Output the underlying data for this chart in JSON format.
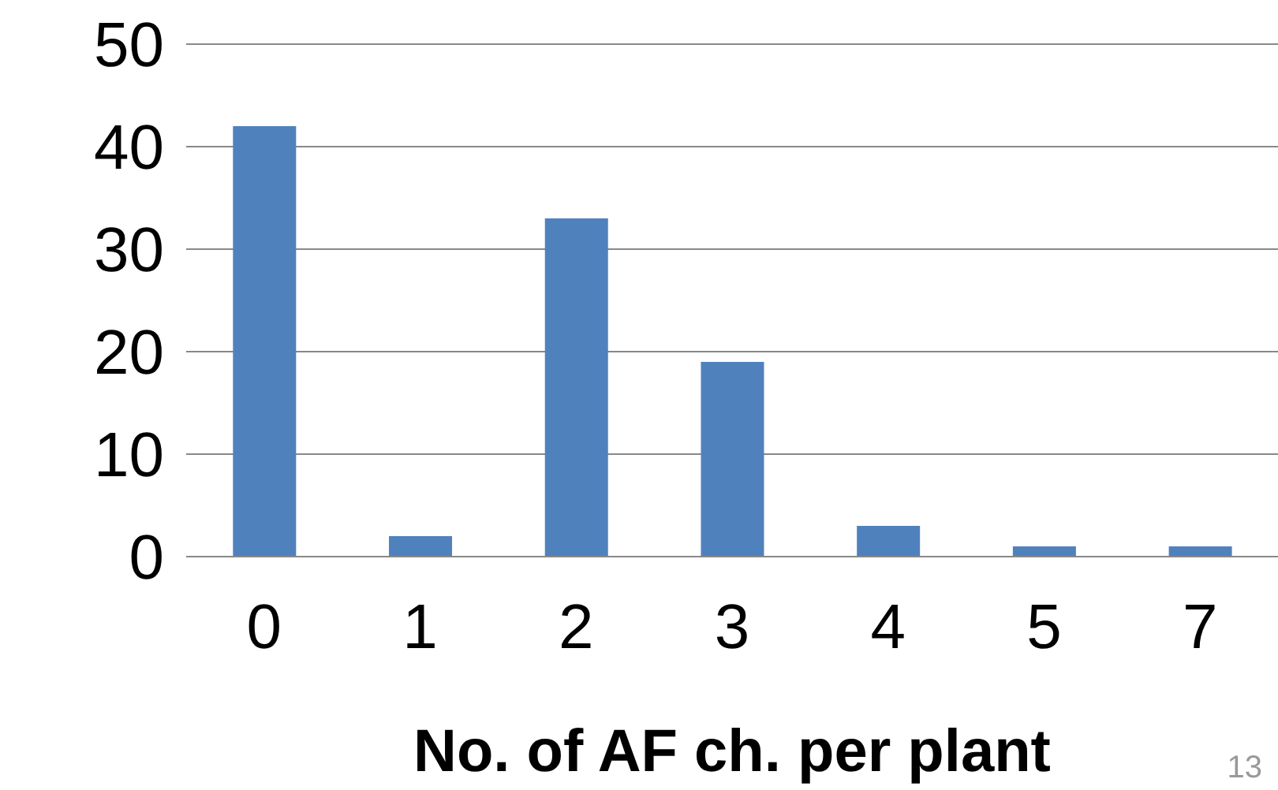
{
  "chart_data": {
    "type": "bar",
    "xlabel": "No. of AF ch. per plant",
    "categories": [
      "0",
      "1",
      "2",
      "3",
      "4",
      "5",
      "7"
    ],
    "values": [
      42,
      2,
      33,
      19,
      3,
      1,
      1
    ],
    "color": "#4f81bd",
    "ylim": [
      0,
      50
    ],
    "yticks": [
      0,
      10,
      20,
      30,
      40,
      50
    ],
    "grid": "y",
    "annotations": [
      "13"
    ]
  }
}
